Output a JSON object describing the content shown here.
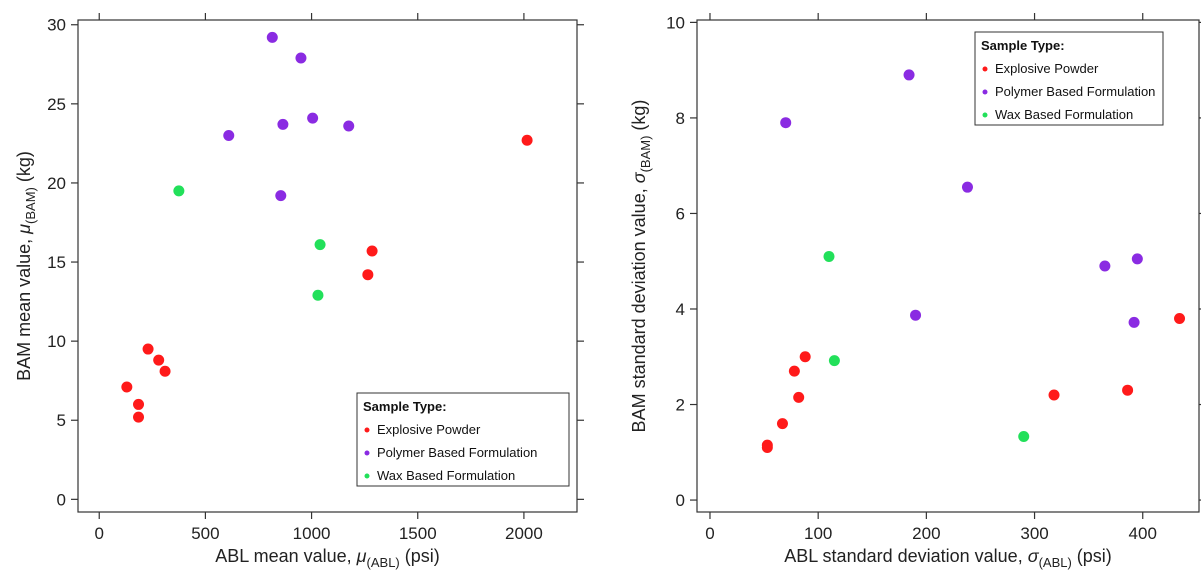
{
  "colors": {
    "Explosive Powder": "#ff1a1a",
    "Polymer Based Formulation": "#8a2be2",
    "Wax Based Formulation": "#22e05a"
  },
  "chart_data": [
    {
      "type": "scatter",
      "xlabel": {
        "main": "ABL mean value, ",
        "sym": "μ",
        "sub": "(ABL)",
        "unit": " (psi)"
      },
      "ylabel": {
        "main": "BAM mean value, ",
        "sym": "μ",
        "sub": "(BAM)",
        "unit": " (kg)"
      },
      "xlim": [
        -100,
        2250
      ],
      "ylim": [
        -0.8,
        30.3
      ],
      "xticks": [
        0,
        500,
        1000,
        1500,
        2000
      ],
      "yticks": [
        0,
        5,
        10,
        15,
        20,
        25,
        30
      ],
      "legend": {
        "title": "Sample Type:",
        "position": "bottom-right",
        "entries": [
          "Explosive Powder",
          "Polymer Based Formulation",
          "Wax Based Formulation"
        ]
      },
      "series": [
        {
          "name": "Explosive Powder",
          "points": [
            [
              130,
              7.1
            ],
            [
              185,
              6.0
            ],
            [
              185,
              5.2
            ],
            [
              230,
              9.5
            ],
            [
              280,
              8.8
            ],
            [
              310,
              8.1
            ],
            [
              1265,
              14.2
            ],
            [
              1285,
              15.7
            ],
            [
              2015,
              22.7
            ]
          ]
        },
        {
          "name": "Polymer Based Formulation",
          "points": [
            [
              610,
              23.0
            ],
            [
              815,
              29.2
            ],
            [
              855,
              19.2
            ],
            [
              865,
              23.7
            ],
            [
              950,
              27.9
            ],
            [
              1005,
              24.1
            ],
            [
              1175,
              23.6
            ]
          ]
        },
        {
          "name": "Wax Based Formulation",
          "points": [
            [
              375,
              19.5
            ],
            [
              1030,
              12.9
            ],
            [
              1040,
              16.1
            ]
          ]
        }
      ]
    },
    {
      "type": "scatter",
      "xlabel": {
        "main": "ABL standard deviation value, ",
        "sym": "σ",
        "sub": "(ABL)",
        "unit": " (psi)"
      },
      "ylabel": {
        "main": "BAM standard deviation value, ",
        "sym": "σ",
        "sub": "(BAM)",
        "unit": " (kg)"
      },
      "xlim": [
        -12,
        452
      ],
      "ylim": [
        -0.25,
        10.05
      ],
      "xticks": [
        0,
        100,
        200,
        300,
        400
      ],
      "yticks": [
        0,
        2,
        4,
        6,
        8,
        10
      ],
      "legend": {
        "title": "Sample Type:",
        "position": "top-right",
        "entries": [
          "Explosive Powder",
          "Polymer Based Formulation",
          "Wax Based Formulation"
        ]
      },
      "series": [
        {
          "name": "Explosive Powder",
          "points": [
            [
              53,
              1.15
            ],
            [
              53,
              1.1
            ],
            [
              67,
              1.6
            ],
            [
              78,
              2.7
            ],
            [
              82,
              2.15
            ],
            [
              88,
              3.0
            ],
            [
              318,
              2.2
            ],
            [
              386,
              2.3
            ],
            [
              434,
              3.8
            ]
          ]
        },
        {
          "name": "Polymer Based Formulation",
          "points": [
            [
              70,
              7.9
            ],
            [
              184,
              8.9
            ],
            [
              190,
              3.87
            ],
            [
              238,
              6.55
            ],
            [
              365,
              4.9
            ],
            [
              392,
              3.72
            ],
            [
              395,
              5.05
            ]
          ]
        },
        {
          "name": "Wax Based Formulation",
          "points": [
            [
              110,
              5.1
            ],
            [
              115,
              2.92
            ],
            [
              290,
              1.33
            ]
          ]
        }
      ]
    }
  ]
}
